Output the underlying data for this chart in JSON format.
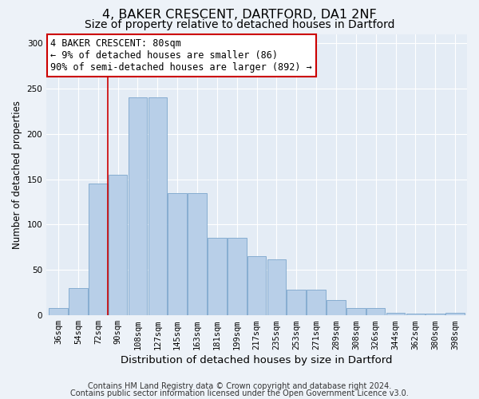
{
  "title1": "4, BAKER CRESCENT, DARTFORD, DA1 2NF",
  "title2": "Size of property relative to detached houses in Dartford",
  "xlabel": "Distribution of detached houses by size in Dartford",
  "ylabel": "Number of detached properties",
  "categories": [
    "36sqm",
    "54sqm",
    "72sqm",
    "90sqm",
    "108sqm",
    "127sqm",
    "145sqm",
    "163sqm",
    "181sqm",
    "199sqm",
    "217sqm",
    "235sqm",
    "253sqm",
    "271sqm",
    "289sqm",
    "308sqm",
    "326sqm",
    "344sqm",
    "362sqm",
    "380sqm",
    "398sqm"
  ],
  "values": [
    8,
    30,
    145,
    155,
    240,
    240,
    135,
    135,
    85,
    85,
    65,
    62,
    28,
    28,
    17,
    8,
    8,
    3,
    2,
    2,
    3
  ],
  "bar_color": "#b8cfe8",
  "bar_edge_color": "#7ba5cc",
  "vline_x": 2.5,
  "vline_color": "#cc0000",
  "annotation_text": "4 BAKER CRESCENT: 80sqm\n← 9% of detached houses are smaller (86)\n90% of semi-detached houses are larger (892) →",
  "annotation_box_color": "#ffffff",
  "annotation_box_edge": "#cc0000",
  "ylim": [
    0,
    310
  ],
  "yticks": [
    0,
    50,
    100,
    150,
    200,
    250,
    300
  ],
  "bg_color": "#e4ecf5",
  "fig_bg_color": "#edf2f8",
  "footer1": "Contains HM Land Registry data © Crown copyright and database right 2024.",
  "footer2": "Contains public sector information licensed under the Open Government Licence v3.0.",
  "title1_fontsize": 11.5,
  "title2_fontsize": 10,
  "xlabel_fontsize": 9.5,
  "ylabel_fontsize": 8.5,
  "tick_fontsize": 7.5,
  "annotation_fontsize": 8.5,
  "footer_fontsize": 7
}
